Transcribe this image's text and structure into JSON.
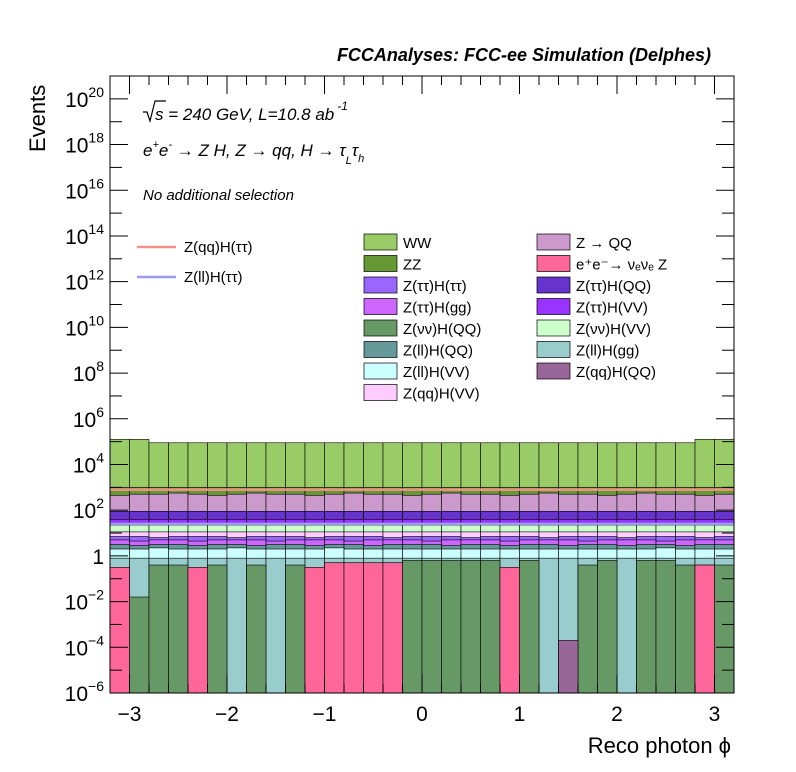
{
  "chart_data": {
    "type": "area",
    "title": "FCCAnalyses: FCC-ee Simulation (Delphes)",
    "xlabel": "Reco photon ϕ",
    "ylabel": "Events",
    "xlim": [
      -3.2,
      3.2
    ],
    "ylim": [
      1e-06,
      1e+21
    ],
    "yscale": "log",
    "grid": false,
    "annotations": {
      "energy_prefix": "√",
      "energy_s": "s",
      "energy_text": " = 240 GeV, L=10.8 ab",
      "energy_exp": "-1",
      "process": {
        "main": "e",
        "p1": "+",
        "e2": "e",
        "p2": "-",
        "rest": " → Z H, Z  → qq, H  → τ",
        "sub1": "L",
        "tau2": "τ",
        "sub2": "h"
      },
      "selection": "No additional selection"
    },
    "x_ticks": [
      {
        "v": -3,
        "label": "−3"
      },
      {
        "v": -2,
        "label": "−2"
      },
      {
        "v": -1,
        "label": "−1"
      },
      {
        "v": 0,
        "label": "0"
      },
      {
        "v": 1,
        "label": "1"
      },
      {
        "v": 2,
        "label": "2"
      },
      {
        "v": 3,
        "label": "3"
      }
    ],
    "y_ticks": [
      {
        "exp": -6,
        "base": "10",
        "sup": "−6"
      },
      {
        "exp": -4,
        "base": "10",
        "sup": "−4"
      },
      {
        "exp": -2,
        "base": "10",
        "sup": "−2"
      },
      {
        "exp": 0,
        "base": "1",
        "sup": ""
      },
      {
        "exp": 2,
        "base": "10",
        "sup": "2"
      },
      {
        "exp": 4,
        "base": "10",
        "sup": "4"
      },
      {
        "exp": 6,
        "base": "10",
        "sup": "6"
      },
      {
        "exp": 8,
        "base": "10",
        "sup": "8"
      },
      {
        "exp": 10,
        "base": "10",
        "sup": "10"
      },
      {
        "exp": 12,
        "base": "10",
        "sup": "12"
      },
      {
        "exp": 14,
        "base": "10",
        "sup": "14"
      },
      {
        "exp": 16,
        "base": "10",
        "sup": "16"
      },
      {
        "exp": 18,
        "base": "10",
        "sup": "18"
      },
      {
        "exp": 20,
        "base": "10",
        "sup": "20"
      }
    ],
    "bins": 32,
    "signal_legend": [
      {
        "name": "Z(qq)H(ττ)",
        "color": "#f4918a"
      },
      {
        "name": "Z(ll)H(ττ)",
        "color": "#9b9bf2"
      }
    ],
    "signal_level_log10": [
      2.9,
      1.4
    ],
    "legend_columns": [
      [
        {
          "name": "WW",
          "color": "#99cc66"
        },
        {
          "name": "ZZ",
          "color": "#669933"
        },
        {
          "name": "Z(ττ)H(ττ)",
          "color": "#9966ff"
        },
        {
          "name": "Z(ττ)H(gg)",
          "color": "#cc66ff"
        },
        {
          "name": "Z(νν)H(QQ)",
          "color": "#669966"
        },
        {
          "name": "Z(ll)H(QQ)",
          "color": "#669999"
        },
        {
          "name": "Z(ll)H(VV)",
          "color": "#ccffff"
        },
        {
          "name": "Z(qq)H(VV)",
          "color": "#ffccff"
        }
      ],
      [
        {
          "name": "Z → QQ",
          "color": "#cc99cc"
        },
        {
          "name": "e⁺e⁻→ νₑνₑ Z",
          "color": "#ff6699"
        },
        {
          "name": "Z(ττ)H(QQ)",
          "color": "#6633cc"
        },
        {
          "name": "Z(ττ)H(VV)",
          "color": "#9933ff"
        },
        {
          "name": "Z(νν)H(VV)",
          "color": "#ccffcc"
        },
        {
          "name": "Z(ll)H(gg)",
          "color": "#99cccc"
        },
        {
          "name": "Z(qq)H(QQ)",
          "color": "#996699"
        }
      ]
    ],
    "stack_bottom_layers": [
      {
        "name": "e⁺e⁻→ νₑνₑ Z",
        "color": "#ff6699",
        "values_log10": [
          -0.5,
          -9,
          -9,
          -9,
          -0.5,
          -9,
          -9,
          -9,
          -9,
          -9,
          -0.5,
          -0.3,
          -0.3,
          -0.3,
          -0.3,
          -9,
          -9,
          -9,
          -9,
          -9,
          -0.5,
          -9,
          -9,
          -9,
          -9,
          -9,
          -9,
          -9,
          -9,
          -9,
          -0.4,
          -9
        ]
      },
      {
        "name": "Z(νν)H(QQ)",
        "color": "#669966",
        "values_log10": [
          -0.5,
          -1.8,
          -0.4,
          -0.4,
          -0.5,
          -0.4,
          -9,
          -0.4,
          -9,
          -0.4,
          -0.5,
          -0.3,
          -0.3,
          -0.3,
          -0.3,
          -0.2,
          -0.2,
          -0.2,
          -0.2,
          -0.2,
          -0.5,
          -0.2,
          -9,
          -9,
          -0.4,
          -0.2,
          -9,
          -0.2,
          -0.2,
          -0.4,
          -0.4,
          -0.4
        ]
      },
      {
        "name": "Z(qq)H(QQ)",
        "color": "#996699",
        "values_log10": [
          -9,
          -9,
          -9,
          -9,
          -9,
          -9,
          -9,
          -9,
          -9,
          -9,
          -9,
          -9,
          -9,
          -9,
          -9,
          -9,
          -9,
          -9,
          -9,
          -9,
          -9,
          -9,
          -9,
          -3.7,
          -9,
          -9,
          -9,
          -9,
          -9,
          -9,
          -9,
          -9
        ]
      },
      {
        "name": "Z(ll)H(gg)",
        "color": "#99cccc",
        "values_log10": [
          -0.1,
          -0.1,
          -0.1,
          -0.1,
          -0.1,
          -0.1,
          -0.1,
          -0.1,
          -0.1,
          -0.1,
          -0.1,
          -0.1,
          -0.1,
          -0.1,
          -0.1,
          -0.1,
          -0.1,
          -0.1,
          -0.1,
          -0.1,
          -0.1,
          -0.1,
          -0.1,
          -0.1,
          -0.1,
          -0.1,
          -0.1,
          -0.1,
          -0.1,
          -0.1,
          -0.1,
          -0.1
        ]
      }
    ],
    "stack_upper_levels_log10": [
      {
        "name": "Z(ll)H(VV)",
        "color": "#ccffff",
        "levels": [
          0.3,
          0.3,
          0.35,
          0.3,
          0.3,
          0.3,
          0.35,
          0.3,
          0.3,
          0.3,
          0.3,
          0.35,
          0.3,
          0.3,
          0.3,
          0.3,
          0.3,
          0.3,
          0.3,
          0.3,
          0.3,
          0.3,
          0.3,
          0.3,
          0.3,
          0.3,
          0.3,
          0.3,
          0.35,
          0.3,
          0.3,
          0.3
        ]
      },
      {
        "name": "Z(ll)H(QQ)",
        "color": "#669999",
        "levels": [
          0.5,
          0.45,
          0.5,
          0.5,
          0.45,
          0.5,
          0.5,
          0.45,
          0.5,
          0.5,
          0.45,
          0.5,
          0.5,
          0.45,
          0.5,
          0.5,
          0.5,
          0.45,
          0.5,
          0.5,
          0.45,
          0.5,
          0.5,
          0.45,
          0.5,
          0.5,
          0.45,
          0.5,
          0.5,
          0.45,
          0.5,
          0.5
        ]
      },
      {
        "name": "Z(ττ)H(gg)",
        "color": "#cc66ff",
        "levels": [
          0.7,
          0.65,
          0.7,
          0.7,
          0.65,
          0.7,
          0.7,
          0.7,
          0.65,
          0.7,
          0.7,
          0.7,
          0.65,
          0.7,
          0.7,
          0.7,
          0.65,
          0.7,
          0.7,
          0.7,
          0.65,
          0.7,
          0.7,
          0.7,
          0.65,
          0.7,
          0.7,
          0.7,
          0.65,
          0.7,
          0.7,
          0.7
        ]
      },
      {
        "name": "Z(ττ)H(ττ)",
        "color": "#9966ff",
        "levels": [
          0.85,
          0.85,
          0.8,
          0.85,
          0.85,
          0.85,
          0.8,
          0.85,
          0.85,
          0.85,
          0.8,
          0.85,
          0.85,
          0.85,
          0.8,
          0.85,
          0.85,
          0.85,
          0.8,
          0.85,
          0.85,
          0.85,
          0.8,
          0.85,
          0.85,
          0.85,
          0.8,
          0.85,
          0.85,
          0.85,
          0.8,
          0.85
        ]
      },
      {
        "name": "Z(qq)H(VV)",
        "color": "#ffccff",
        "levels": [
          1.05,
          1.05,
          1.05,
          1.05,
          1.05,
          1.05,
          1.05,
          1.05,
          1.05,
          1.05,
          1.05,
          1.05,
          1.05,
          1.05,
          1.05,
          1.05,
          1.05,
          1.05,
          1.05,
          1.05,
          1.05,
          1.05,
          1.05,
          1.05,
          1.05,
          1.05,
          1.05,
          1.05,
          1.05,
          1.05,
          1.05,
          1.05
        ]
      },
      {
        "name": "Z(νν)H(VV)",
        "color": "#ccffcc",
        "levels": [
          1.35,
          1.35,
          1.35,
          1.35,
          1.35,
          1.35,
          1.35,
          1.35,
          1.35,
          1.35,
          1.35,
          1.35,
          1.35,
          1.35,
          1.35,
          1.35,
          1.35,
          1.35,
          1.35,
          1.35,
          1.35,
          1.35,
          1.35,
          1.35,
          1.35,
          1.35,
          1.35,
          1.35,
          1.35,
          1.35,
          1.35,
          1.35
        ]
      },
      {
        "name": "Z(ττ)H(VV)",
        "color": "#9933ff",
        "levels": [
          1.6,
          1.6,
          1.6,
          1.6,
          1.6,
          1.6,
          1.6,
          1.6,
          1.6,
          1.6,
          1.6,
          1.6,
          1.6,
          1.6,
          1.6,
          1.6,
          1.6,
          1.6,
          1.6,
          1.6,
          1.6,
          1.6,
          1.6,
          1.6,
          1.6,
          1.6,
          1.6,
          1.6,
          1.6,
          1.6,
          1.6,
          1.6
        ]
      },
      {
        "name": "Z(ττ)H(QQ)",
        "color": "#6633cc",
        "levels": [
          1.95,
          1.95,
          1.95,
          1.95,
          1.95,
          1.95,
          1.95,
          1.95,
          1.95,
          1.95,
          1.95,
          1.95,
          1.95,
          1.95,
          1.95,
          1.95,
          1.95,
          1.95,
          1.95,
          1.95,
          1.95,
          1.95,
          1.95,
          1.95,
          1.95,
          1.95,
          1.95,
          1.95,
          1.95,
          1.95,
          1.95,
          1.95
        ]
      },
      {
        "name": "Z → QQ",
        "color": "#cc99cc",
        "levels": [
          2.65,
          2.7,
          2.7,
          2.75,
          2.7,
          2.65,
          2.7,
          2.75,
          2.7,
          2.7,
          2.65,
          2.7,
          2.75,
          2.7,
          2.7,
          2.65,
          2.7,
          2.75,
          2.7,
          2.7,
          2.65,
          2.7,
          2.75,
          2.7,
          2.7,
          2.65,
          2.7,
          2.75,
          2.7,
          2.7,
          2.65,
          2.7
        ]
      },
      {
        "name": "ZZ",
        "color": "#669933",
        "levels": [
          3.0,
          3.0,
          3.0,
          3.0,
          3.0,
          3.0,
          3.0,
          3.0,
          3.0,
          3.0,
          3.0,
          3.0,
          3.0,
          3.0,
          3.0,
          3.0,
          3.0,
          3.0,
          3.0,
          3.0,
          3.0,
          3.0,
          3.0,
          3.0,
          3.0,
          3.0,
          3.0,
          3.0,
          3.0,
          3.0,
          3.0,
          3.0
        ]
      },
      {
        "name": "WW",
        "color": "#99cc66",
        "levels": [
          5.1,
          5.1,
          4.95,
          4.95,
          4.95,
          4.95,
          4.95,
          4.95,
          4.95,
          4.95,
          4.95,
          4.95,
          4.95,
          4.95,
          4.95,
          4.95,
          4.95,
          4.95,
          4.95,
          4.95,
          4.95,
          4.95,
          4.95,
          4.95,
          4.95,
          4.95,
          4.95,
          4.95,
          4.95,
          4.95,
          5.1,
          5.1
        ]
      }
    ]
  }
}
